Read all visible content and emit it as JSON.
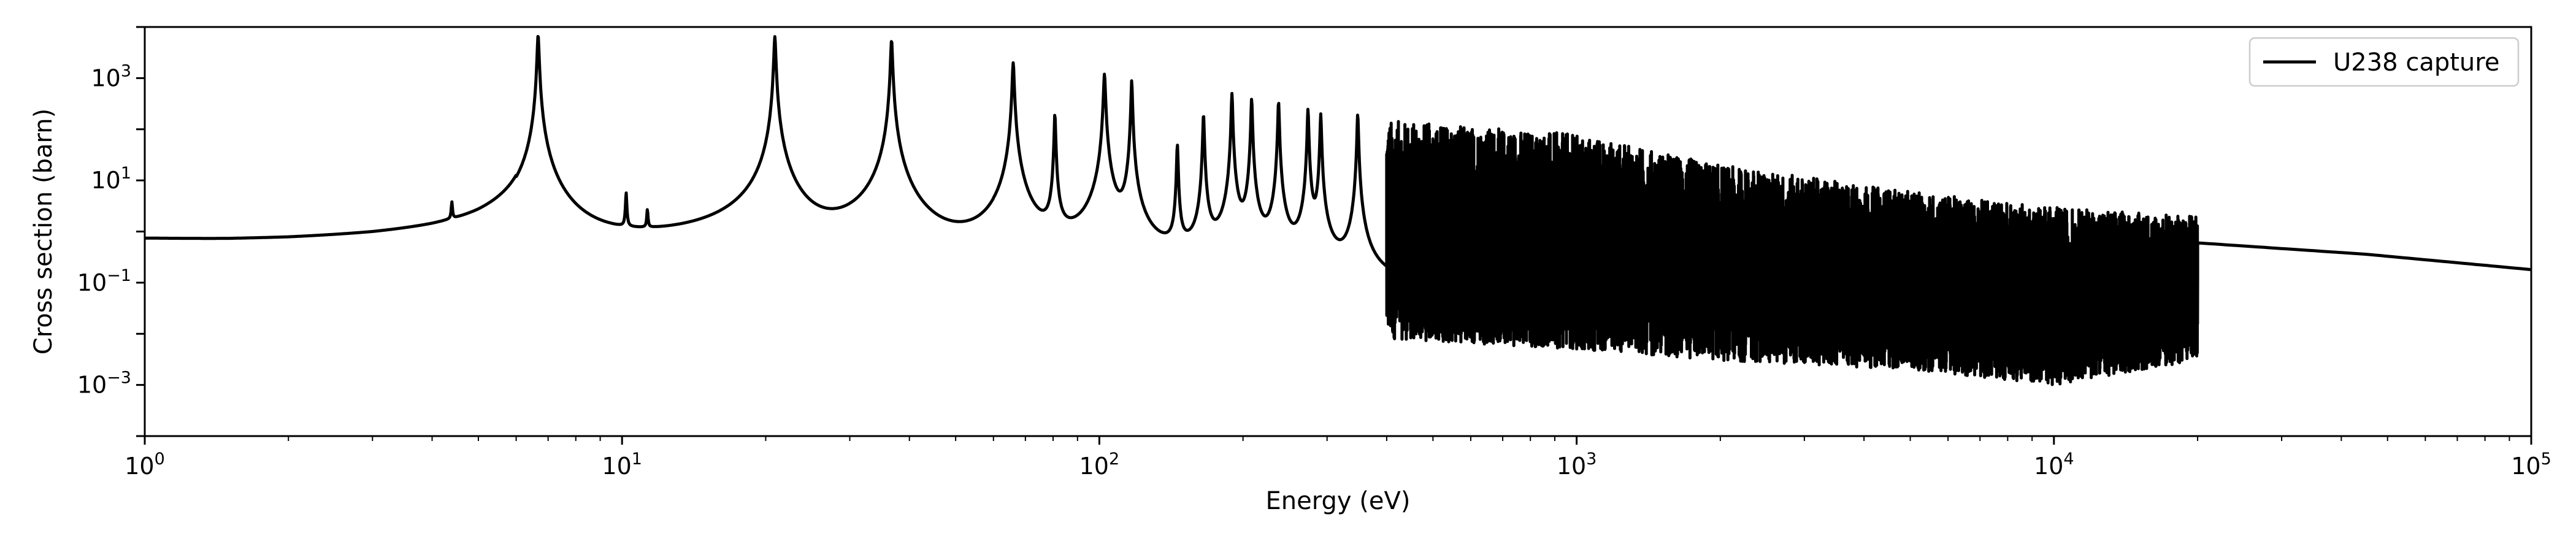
{
  "chart_data": {
    "type": "line",
    "xlabel": "Energy (eV)",
    "ylabel": "Cross section (barn)",
    "x_scale": "log",
    "y_scale": "log",
    "xlim": [
      1,
      100000
    ],
    "ylim": [
      0.0001,
      10000
    ],
    "grid": false,
    "legend_position": "top-right",
    "x_ticks": [
      {
        "base": "10",
        "exp": "0",
        "value": 1
      },
      {
        "base": "10",
        "exp": "1",
        "value": 10
      },
      {
        "base": "10",
        "exp": "2",
        "value": 100
      },
      {
        "base": "10",
        "exp": "3",
        "value": 1000
      },
      {
        "base": "10",
        "exp": "4",
        "value": 10000
      },
      {
        "base": "10",
        "exp": "5",
        "value": 100000
      }
    ],
    "y_ticks": [
      {
        "base": "10",
        "exp": "3",
        "value": 1000
      },
      {
        "base": "10",
        "exp": "1",
        "value": 10
      },
      {
        "base": "10",
        "exp": "−1",
        "value": 0.1
      },
      {
        "base": "10",
        "exp": "−3",
        "value": 0.001
      }
    ],
    "series": [
      {
        "name": "U238 capture",
        "color": "#000000",
        "background": [
          [
            1.0,
            0.3
          ],
          [
            1.5,
            0.25
          ],
          [
            2.0,
            0.25
          ],
          [
            3.0,
            0.3
          ],
          [
            4.0,
            0.4
          ],
          [
            5.0,
            0.6
          ],
          [
            6.0,
            1.2
          ]
        ],
        "resonances": [
          {
            "e": 4.4,
            "peak": 2.0
          },
          {
            "e": 6.67,
            "peak": 7000
          },
          {
            "e": 10.2,
            "peak": 4.5
          },
          {
            "e": 11.3,
            "peak": 1.5
          },
          {
            "e": 20.9,
            "peak": 6500
          },
          {
            "e": 36.7,
            "peak": 5500
          },
          {
            "e": 66.0,
            "peak": 2000
          },
          {
            "e": 80.7,
            "peak": 200
          },
          {
            "e": 102.5,
            "peak": 1200
          },
          {
            "e": 116.9,
            "peak": 900
          },
          {
            "e": 145.7,
            "peak": 50
          },
          {
            "e": 165.3,
            "peak": 200
          },
          {
            "e": 189.6,
            "peak": 500
          },
          {
            "e": 208.5,
            "peak": 400
          },
          {
            "e": 237.4,
            "peak": 350
          },
          {
            "e": 273.6,
            "peak": 250
          },
          {
            "e": 291.0,
            "peak": 200
          },
          {
            "e": 347.8,
            "peak": 200
          }
        ],
        "resolved_region": [
          400,
          20000
        ],
        "resolved_envelope": [
          {
            "e": 400,
            "max": 150,
            "min": 0.008
          },
          {
            "e": 1000,
            "max": 80,
            "min": 0.005
          },
          {
            "e": 2000,
            "max": 20,
            "min": 0.003
          },
          {
            "e": 5000,
            "max": 6,
            "min": 0.002
          },
          {
            "e": 10000,
            "max": 3,
            "min": 0.001
          },
          {
            "e": 20000,
            "max": 2,
            "min": 0.003
          }
        ],
        "tail": [
          [
            20000,
            0.6
          ],
          [
            45000,
            0.36
          ],
          [
            100000,
            0.18
          ]
        ]
      }
    ]
  }
}
